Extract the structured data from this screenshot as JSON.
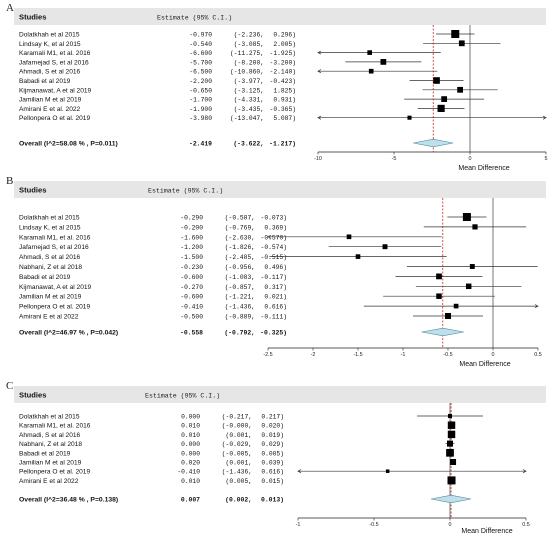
{
  "chart_data": [
    {
      "type": "forest",
      "panel_label": "A",
      "header": {
        "studies": "Studies",
        "estimate": "Estimate (95% C.I.)"
      },
      "xlabel": "Mean Difference",
      "xlim": [
        -10,
        5
      ],
      "xticks": [
        "-10",
        "-5",
        "0",
        "5"
      ],
      "xtick_values": [
        -10,
        -5,
        0,
        5
      ],
      "zero_line": 0,
      "studies": [
        {
          "name": "Dolatkhah et al  2015",
          "est": -0.97,
          "lo": -2.236,
          "hi": 0.296,
          "est_text": "-0.970",
          "lo_text": "(-2.236,",
          "hi_text": "0.296)",
          "weight": 1.0
        },
        {
          "name": "Lindsay K, et al 2015",
          "est": -0.54,
          "lo": -3.085,
          "hi": 2.005,
          "est_text": "-0.540",
          "lo_text": "(-3.085,",
          "hi_text": "2.005)",
          "weight": 0.6
        },
        {
          "name": "Karamali M1, et al. 2016",
          "est": -6.6,
          "lo": -11.275,
          "hi": -1.925,
          "est_text": "-6.600",
          "lo_text": "(-11.275,",
          "hi_text": "-1.925)",
          "weight": 0.4
        },
        {
          "name": "Jafarnejad S, et al 2016",
          "est": -5.7,
          "lo": -8.2,
          "hi": -3.2,
          "est_text": "-5.700",
          "lo_text": "(-8.200,",
          "hi_text": "-3.200)",
          "weight": 0.6
        },
        {
          "name": "Ahmadi, S et al 2016",
          "est": -6.5,
          "lo": -10.86,
          "hi": -2.14,
          "est_text": "-6.500",
          "lo_text": "(-10.860,",
          "hi_text": "-2.140)",
          "weight": 0.4
        },
        {
          "name": "Babadi et al 2019",
          "est": -2.2,
          "lo": -3.977,
          "hi": -0.423,
          "est_text": "-2.200",
          "lo_text": "(-3.977,",
          "hi_text": "-0.423)",
          "weight": 0.75
        },
        {
          "name": "Kijmanawat, A et al 2019",
          "est": -0.65,
          "lo": -3.125,
          "hi": 1.825,
          "est_text": "-0.650",
          "lo_text": "(-3.125,",
          "hi_text": "1.825)",
          "weight": 0.6
        },
        {
          "name": "Jamilian M et al 2019",
          "est": -1.7,
          "lo": -4.331,
          "hi": 0.931,
          "est_text": "-1.700",
          "lo_text": "(-4.331,",
          "hi_text": "0.931)",
          "weight": 0.6
        },
        {
          "name": "Amirani E et al. 2022",
          "est": -1.9,
          "lo": -3.435,
          "hi": -0.365,
          "est_text": "-1.900",
          "lo_text": "(-3.435,",
          "hi_text": "-0.365)",
          "weight": 0.85
        },
        {
          "name": "Pellonpera O et al. 2019",
          "est": -3.98,
          "lo": -13.047,
          "hi": 5.087,
          "est_text": "-3.980",
          "lo_text": "(-13.047,",
          "hi_text": "5.087)",
          "weight": 0.3
        }
      ],
      "overall": {
        "label": "Overall (I^2=58.08 % , P=0.011)",
        "est": -2.419,
        "lo": -3.622,
        "hi": -1.217,
        "est_text": "-2.419",
        "lo_text": "(-3.622,",
        "hi_text": "-1.217)"
      }
    },
    {
      "type": "forest",
      "panel_label": "B",
      "header": {
        "studies": "Studies",
        "estimate": "Estimate (95% C.I.)"
      },
      "xlabel": "Mean Difference",
      "xlim": [
        -2.5,
        0.5
      ],
      "xticks": [
        "-2.5",
        "-2",
        "-1.5",
        "-1",
        "-0.5",
        "0",
        "0.5"
      ],
      "xtick_values": [
        -2.5,
        -2,
        -1.5,
        -1,
        -0.5,
        0,
        0.5
      ],
      "zero_line": 0,
      "studies": [
        {
          "name": "Dolatkhah et al  2015",
          "est": -0.29,
          "lo": -0.507,
          "hi": -0.073,
          "est_text": "-0.290",
          "lo_text": "(-0.507,",
          "hi_text": "-0.073)",
          "weight": 1.0
        },
        {
          "name": "Lindsay K, et al 2015",
          "est": -0.2,
          "lo": -0.769,
          "hi": 0.369,
          "est_text": "-0.200",
          "lo_text": "(-0.769,",
          "hi_text": "0.369)",
          "weight": 0.5
        },
        {
          "name": "Karamali M1, et al. 2016",
          "est": -1.6,
          "lo": -2.63,
          "hi": -0.57,
          "est_text": "-1.600",
          "lo_text": "(-2.630,",
          "hi_text": "-0.570)",
          "weight": 0.4
        },
        {
          "name": "Jafarnejad S, et al 2016",
          "est": -1.2,
          "lo": -1.826,
          "hi": -0.574,
          "est_text": "-1.200",
          "lo_text": "(-1.826,",
          "hi_text": "-0.574)",
          "weight": 0.45
        },
        {
          "name": "Ahmadi, S et al 2016",
          "est": -1.5,
          "lo": -2.485,
          "hi": -0.515,
          "est_text": "-1.500",
          "lo_text": "(-2.485,",
          "hi_text": "-0.515)",
          "weight": 0.4
        },
        {
          "name": "Nabhani, Z et al 2018",
          "est": -0.23,
          "lo": -0.956,
          "hi": 0.496,
          "est_text": "-0.230",
          "lo_text": "(-0.956,",
          "hi_text": "0.496)",
          "weight": 0.45
        },
        {
          "name": "Babadi et al 2019",
          "est": -0.6,
          "lo": -1.083,
          "hi": -0.117,
          "est_text": "-0.600",
          "lo_text": "(-1.083,",
          "hi_text": "-0.117)",
          "weight": 0.6
        },
        {
          "name": "Kijmanawat, A et al 2019",
          "est": -0.27,
          "lo": -0.857,
          "hi": 0.317,
          "est_text": "-0.270",
          "lo_text": "(-0.857,",
          "hi_text": "0.317)",
          "weight": 0.55
        },
        {
          "name": "Jamilian M et al 2019",
          "est": -0.6,
          "lo": -1.221,
          "hi": 0.021,
          "est_text": "-0.600",
          "lo_text": "(-1.221,",
          "hi_text": "0.021)",
          "weight": 0.55
        },
        {
          "name": "Pellonpera O et al. 2019",
          "est": -0.41,
          "lo": -1.436,
          "hi": 0.616,
          "est_text": "-0.410",
          "lo_text": "(-1.436,",
          "hi_text": "0.616)",
          "weight": 0.4
        },
        {
          "name": "Amirani E et al 2022",
          "est": -0.5,
          "lo": -0.889,
          "hi": -0.111,
          "est_text": "-0.500",
          "lo_text": "(-0.889,",
          "hi_text": "-0.111)",
          "weight": 0.65
        }
      ],
      "overall": {
        "label": "Overall (I^2=46.97 % , P=0.042)",
        "est": -0.558,
        "lo": -0.792,
        "hi": -0.325,
        "est_text": "-0.558",
        "lo_text": "(-0.792,",
        "hi_text": "-0.325)"
      }
    },
    {
      "type": "forest",
      "panel_label": "C",
      "header": {
        "studies": "Studies",
        "estimate": "Estimate (95% C.I.)"
      },
      "xlabel": "Mean Difference",
      "xlim": [
        -1,
        0.5
      ],
      "xticks": [
        "-1",
        "-0.5",
        "0",
        "0.5"
      ],
      "xtick_values": [
        -1,
        -0.5,
        0,
        0.5
      ],
      "zero_line": 0,
      "studies": [
        {
          "name": "Dolatkhah et al  2015",
          "est": 0.0,
          "lo": -0.217,
          "hi": 0.217,
          "est_text": "0.000",
          "lo_text": "(-0.217,",
          "hi_text": "0.217)",
          "weight": 0.3
        },
        {
          "name": "Karamali M1, et al. 2016",
          "est": 0.01,
          "lo": -0.0,
          "hi": 0.02,
          "est_text": "0.010",
          "lo_text": "(-0.000,",
          "hi_text": "0.020)",
          "weight": 0.9
        },
        {
          "name": "Ahmadi, S et al 2016",
          "est": 0.01,
          "lo": 0.001,
          "hi": 0.019,
          "est_text": "0.010",
          "lo_text": "(0.001,",
          "hi_text": "0.019)",
          "weight": 0.9
        },
        {
          "name": "Nabhani, Z et al 2018",
          "est": 0.0,
          "lo": -0.029,
          "hi": 0.029,
          "est_text": "0.000",
          "lo_text": "(-0.029,",
          "hi_text": "0.029)",
          "weight": 0.65
        },
        {
          "name": "Babadi et al 2019",
          "est": 0.0,
          "lo": -0.005,
          "hi": 0.005,
          "est_text": "0.000",
          "lo_text": "(-0.005,",
          "hi_text": "0.005)",
          "weight": 0.95
        },
        {
          "name": "Jamilian M et al 2019",
          "est": 0.02,
          "lo": 0.001,
          "hi": 0.039,
          "est_text": "0.020",
          "lo_text": "(0.001,",
          "hi_text": "0.039)",
          "weight": 0.65
        },
        {
          "name": "Pellonpera O et al. 2019",
          "est": -0.41,
          "lo": -1.436,
          "hi": 0.616,
          "est_text": "-0.410",
          "lo_text": "(-1.436,",
          "hi_text": "0.616)",
          "weight": 0.2
        },
        {
          "name": "Amirani E et al 2022",
          "est": 0.01,
          "lo": 0.005,
          "hi": 0.015,
          "est_text": "0.010",
          "lo_text": "(0.005,",
          "hi_text": "0.015)",
          "weight": 1.0
        }
      ],
      "overall": {
        "label": "Overall (I^2=36.48 % , P=0.138)",
        "est": 0.007,
        "lo": 0.002,
        "hi": 0.013,
        "est_text": "0.007",
        "lo_text": "(0.002,",
        "hi_text": "0.013)"
      }
    }
  ],
  "colors": {
    "background": "#ffffff",
    "header_band": "#e6e6e6",
    "text": "#111111",
    "marker": "#000000",
    "ci_line": "#333333",
    "zero_line": "#555555",
    "overall_line": "#cc2222",
    "diamond_fill": "#bfe0ea",
    "diamond_stroke": "#4a8aa0"
  }
}
